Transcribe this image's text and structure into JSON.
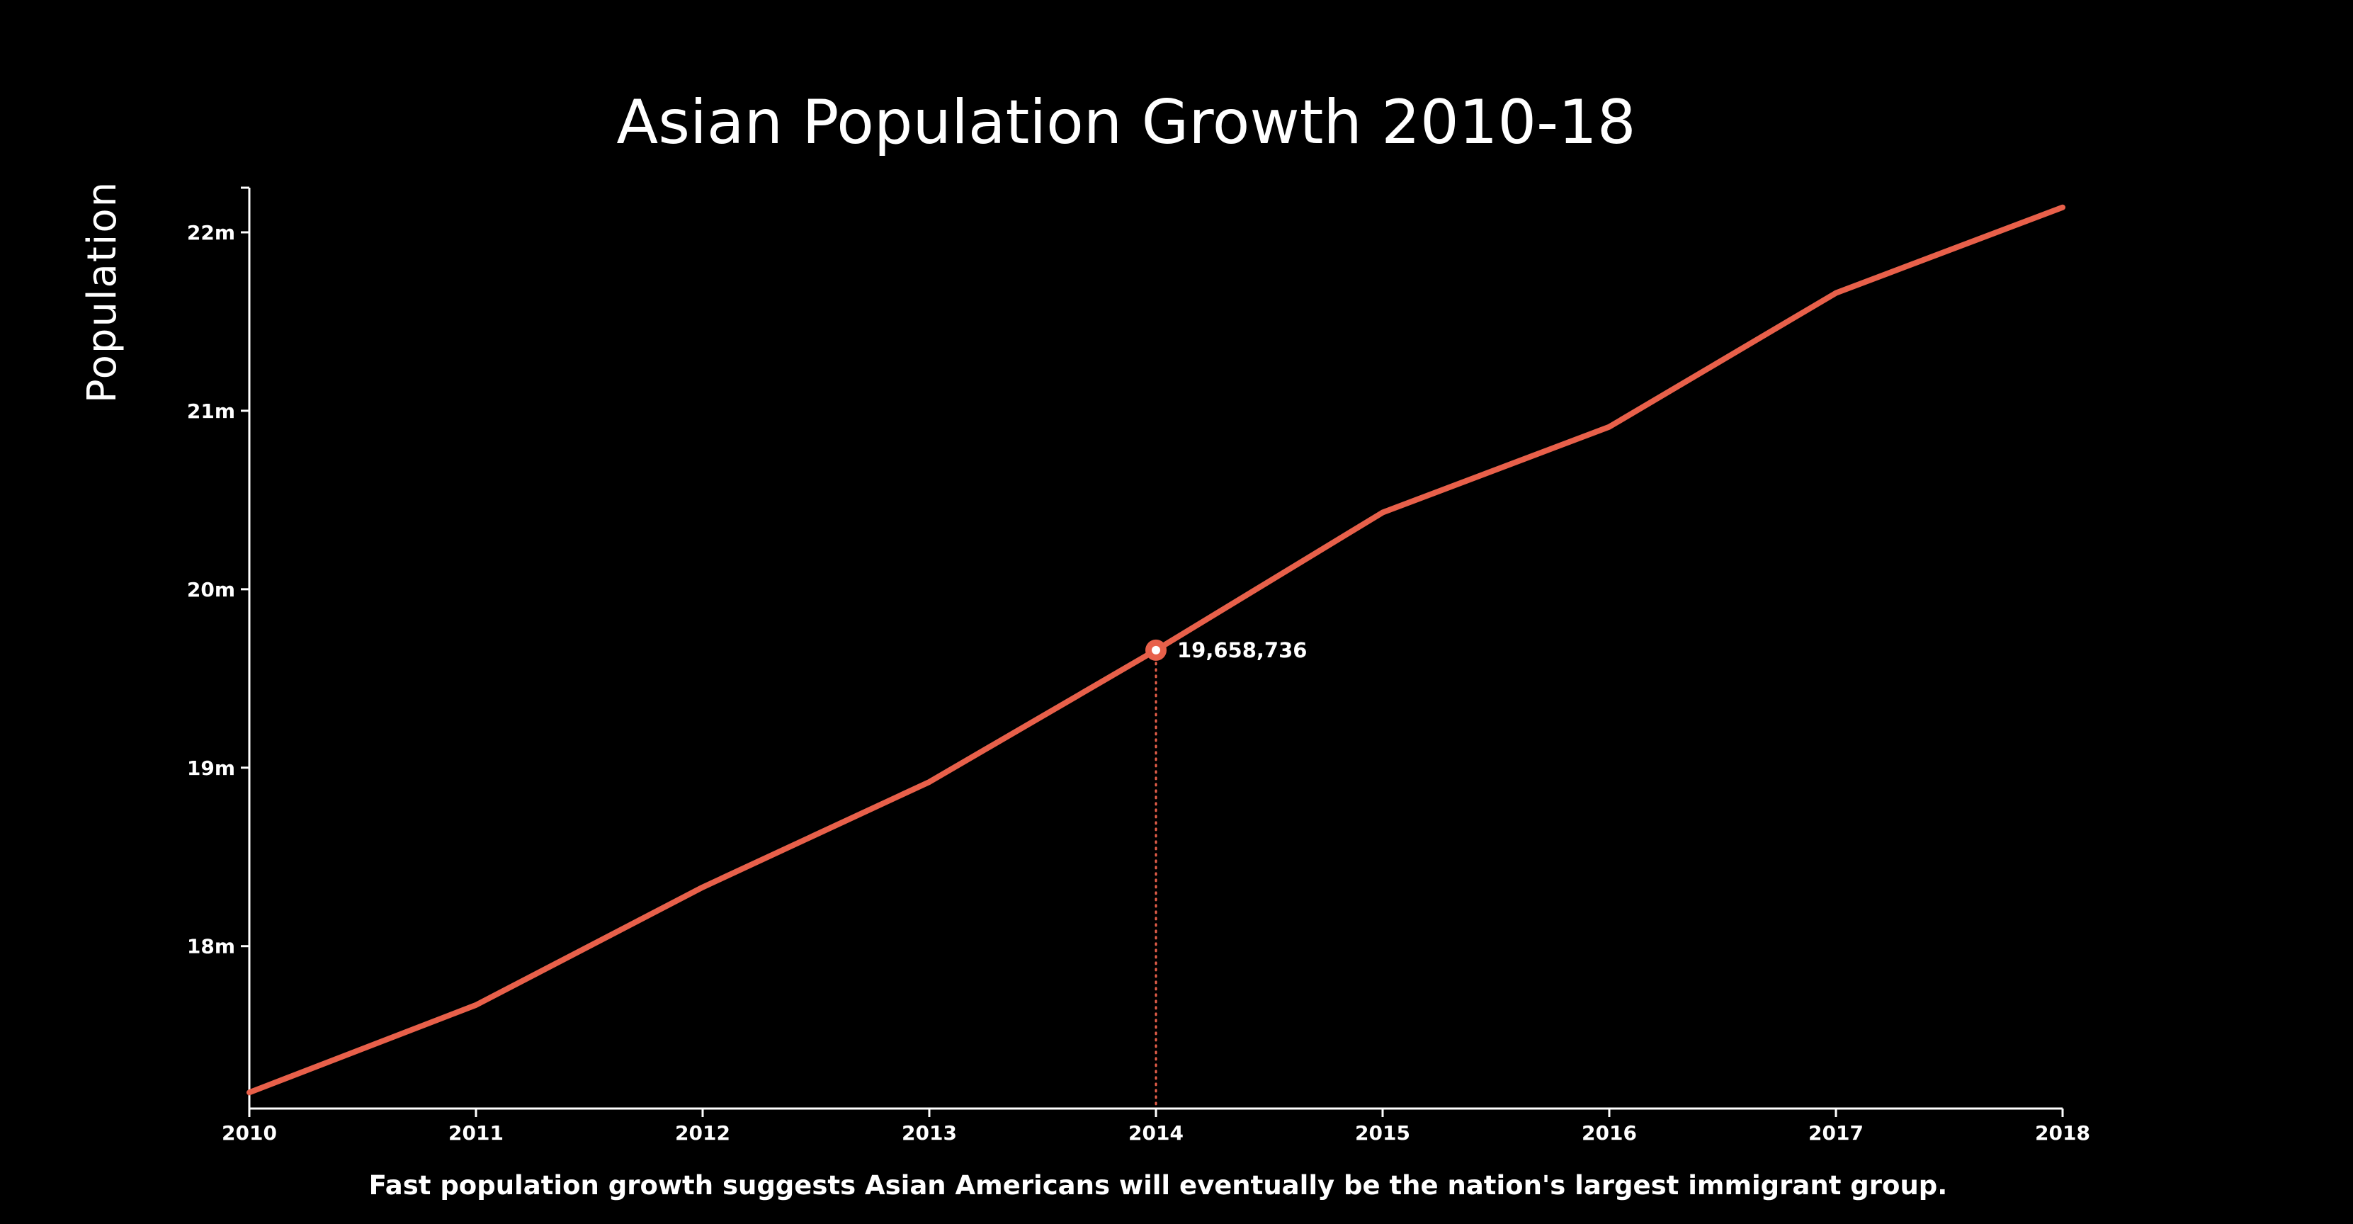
{
  "colors": {
    "background": "#000000",
    "text": "#ffffff",
    "line": "#e8604a"
  },
  "chart_data": {
    "type": "line",
    "title": "Asian Population Growth 2010-18",
    "xlabel": "",
    "ylabel": "Population",
    "caption": "Fast population growth suggests Asian Americans will eventually be the nation's largest immigrant group.",
    "x": [
      2010,
      2011,
      2012,
      2013,
      2014,
      2015,
      2016,
      2017,
      2018
    ],
    "x_tick_labels": [
      "2010",
      "2011",
      "2012",
      "2013",
      "2014",
      "2015",
      "2016",
      "2017",
      "2018"
    ],
    "series": [
      {
        "values": [
          17180000,
          17670000,
          18330000,
          18920000,
          19658736,
          20430000,
          20910000,
          21660000,
          22140000
        ]
      }
    ],
    "y_ticks": [
      18000000,
      19000000,
      20000000,
      21000000,
      22000000
    ],
    "y_tick_labels": [
      "18m",
      "19m",
      "20m",
      "21m",
      "22m"
    ],
    "ylim": [
      17090000,
      22250000
    ],
    "xlim": [
      2010,
      2018
    ],
    "highlight": {
      "x": 2014,
      "value": 19658736,
      "label": "19,658,736"
    },
    "grid": false,
    "legend": "none"
  }
}
